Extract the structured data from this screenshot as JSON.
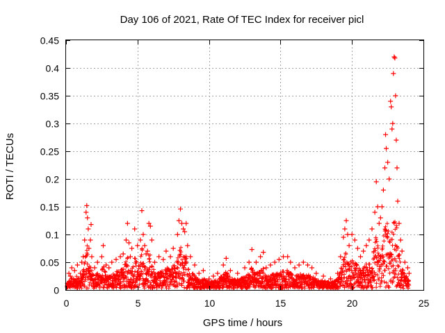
{
  "chart_data": {
    "type": "scatter",
    "title": "Day 106 of 2021, Rate Of TEC Index for receiver picl",
    "xlabel": "GPS time / hours",
    "ylabel": "ROTI / TECUs",
    "xlim": [
      0,
      25
    ],
    "ylim": [
      0,
      0.45
    ],
    "x_ticks": [
      0,
      5,
      10,
      15,
      20,
      25
    ],
    "y_ticks": [
      0,
      0.05,
      0.1,
      0.15,
      0.2,
      0.25,
      0.3,
      0.35,
      0.4,
      0.45
    ],
    "x_tick_labels": [
      "0",
      "5",
      "10",
      "15",
      "20",
      "25"
    ],
    "y_tick_labels": [
      "0",
      "0.05",
      "0.1",
      "0.15",
      "0.2",
      "0.25",
      "0.3",
      "0.35",
      "0.4",
      "0.45"
    ],
    "grid": true,
    "marker": "+",
    "color": "#ff0000",
    "series": [
      {
        "name": "ROTI",
        "points": [
          [
            0.1,
            0.012
          ],
          [
            0.2,
            0.03
          ],
          [
            0.3,
            0.025
          ],
          [
            0.4,
            0.04
          ],
          [
            0.5,
            0.02
          ],
          [
            0.6,
            0.035
          ],
          [
            0.8,
            0.045
          ],
          [
            1.0,
            0.03
          ],
          [
            1.1,
            0.05
          ],
          [
            1.2,
            0.06
          ],
          [
            1.3,
            0.09
          ],
          [
            1.4,
            0.14
          ],
          [
            1.45,
            0.152
          ],
          [
            1.5,
            0.13
          ],
          [
            1.55,
            0.11
          ],
          [
            1.6,
            0.075
          ],
          [
            1.7,
            0.09
          ],
          [
            1.75,
            0.118
          ],
          [
            1.8,
            0.06
          ],
          [
            2.0,
            0.04
          ],
          [
            2.2,
            0.05
          ],
          [
            2.5,
            0.06
          ],
          [
            2.6,
            0.08
          ],
          [
            2.8,
            0.045
          ],
          [
            3.0,
            0.04
          ],
          [
            3.2,
            0.05
          ],
          [
            3.5,
            0.055
          ],
          [
            3.8,
            0.06
          ],
          [
            4.0,
            0.065
          ],
          [
            4.2,
            0.09
          ],
          [
            4.3,
            0.12
          ],
          [
            4.4,
            0.085
          ],
          [
            4.5,
            0.06
          ],
          [
            4.6,
            0.075
          ],
          [
            4.8,
            0.11
          ],
          [
            5.0,
            0.08
          ],
          [
            5.2,
            0.09
          ],
          [
            5.3,
            0.143
          ],
          [
            5.4,
            0.1
          ],
          [
            5.5,
            0.08
          ],
          [
            5.6,
            0.065
          ],
          [
            5.7,
            0.07
          ],
          [
            5.8,
            0.12
          ],
          [
            5.9,
            0.115
          ],
          [
            6.0,
            0.09
          ],
          [
            6.2,
            0.05
          ],
          [
            6.5,
            0.06
          ],
          [
            6.8,
            0.055
          ],
          [
            7.0,
            0.07
          ],
          [
            7.3,
            0.06
          ],
          [
            7.5,
            0.075
          ],
          [
            7.8,
            0.1
          ],
          [
            7.9,
            0.125
          ],
          [
            8.0,
            0.146
          ],
          [
            8.1,
            0.12
          ],
          [
            8.2,
            0.11
          ],
          [
            8.3,
            0.105
          ],
          [
            8.4,
            0.12
          ],
          [
            8.5,
            0.08
          ],
          [
            8.7,
            0.06
          ],
          [
            9.0,
            0.045
          ],
          [
            9.3,
            0.03
          ],
          [
            9.6,
            0.035
          ],
          [
            10.0,
            0.02
          ],
          [
            10.3,
            0.025
          ],
          [
            10.6,
            0.03
          ],
          [
            11.0,
            0.045
          ],
          [
            11.2,
            0.057
          ],
          [
            11.5,
            0.035
          ],
          [
            12.0,
            0.03
          ],
          [
            12.5,
            0.04
          ],
          [
            12.8,
            0.05
          ],
          [
            13.0,
            0.073
          ],
          [
            13.3,
            0.05
          ],
          [
            13.6,
            0.06
          ],
          [
            13.8,
            0.068
          ],
          [
            14.0,
            0.04
          ],
          [
            14.3,
            0.045
          ],
          [
            14.6,
            0.05
          ],
          [
            14.9,
            0.055
          ],
          [
            15.2,
            0.06
          ],
          [
            15.5,
            0.06
          ],
          [
            15.7,
            0.05
          ],
          [
            16.0,
            0.04
          ],
          [
            16.3,
            0.045
          ],
          [
            16.6,
            0.05
          ],
          [
            16.9,
            0.045
          ],
          [
            17.2,
            0.04
          ],
          [
            17.5,
            0.03
          ],
          [
            18.0,
            0.025
          ],
          [
            18.5,
            0.02
          ],
          [
            19.0,
            0.03
          ],
          [
            19.2,
            0.06
          ],
          [
            19.4,
            0.095
          ],
          [
            19.5,
            0.11
          ],
          [
            19.6,
            0.125
          ],
          [
            19.7,
            0.1
          ],
          [
            19.8,
            0.08
          ],
          [
            20.0,
            0.1
          ],
          [
            20.2,
            0.09
          ],
          [
            20.4,
            0.075
          ],
          [
            20.6,
            0.06
          ],
          [
            20.8,
            0.07
          ],
          [
            21.0,
            0.08
          ],
          [
            21.2,
            0.09
          ],
          [
            21.4,
            0.11
          ],
          [
            21.6,
            0.14
          ],
          [
            21.7,
            0.195
          ],
          [
            21.8,
            0.15
          ],
          [
            21.9,
            0.12
          ],
          [
            22.0,
            0.13
          ],
          [
            22.1,
            0.15
          ],
          [
            22.2,
            0.18
          ],
          [
            22.3,
            0.22
          ],
          [
            22.35,
            0.28
          ],
          [
            22.4,
            0.255
          ],
          [
            22.5,
            0.23
          ],
          [
            22.6,
            0.2
          ],
          [
            22.7,
            0.34
          ],
          [
            22.75,
            0.33
          ],
          [
            22.8,
            0.29
          ],
          [
            22.85,
            0.3
          ],
          [
            22.9,
            0.39
          ],
          [
            22.95,
            0.42
          ],
          [
            23.0,
            0.418
          ],
          [
            23.05,
            0.35
          ],
          [
            23.1,
            0.27
          ],
          [
            23.15,
            0.22
          ],
          [
            23.2,
            0.16
          ],
          [
            23.3,
            0.12
          ],
          [
            23.4,
            0.09
          ],
          [
            23.5,
            0.07
          ],
          [
            23.7,
            0.05
          ],
          [
            23.9,
            0.04
          ],
          [
            24.0,
            0.03
          ]
        ]
      }
    ]
  }
}
